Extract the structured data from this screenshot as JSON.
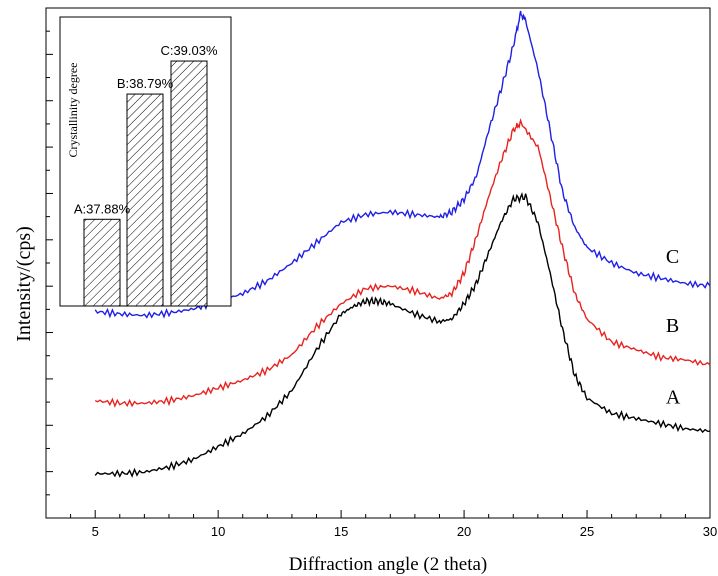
{
  "chart_data": [
    {
      "type": "line",
      "title": "",
      "xlabel": "Diffraction angle (2 theta)",
      "ylabel": "Intensity/(cps)",
      "xlim": [
        3,
        30
      ],
      "ylim": [
        0,
        1
      ],
      "grid": false,
      "legend": "none",
      "x_ticks": [
        5,
        10,
        15,
        20,
        25,
        30
      ],
      "x_tick_labels": [
        "5",
        "10",
        "15",
        "20",
        "25",
        "30"
      ],
      "series": [
        {
          "name": "A",
          "color": "#000000",
          "points": [
            [
              5,
              0.087
            ],
            [
              6,
              0.087
            ],
            [
              7,
              0.09
            ],
            [
              8,
              0.1
            ],
            [
              9,
              0.115
            ],
            [
              10,
              0.14
            ],
            [
              11,
              0.165
            ],
            [
              12,
              0.2
            ],
            [
              13,
              0.25
            ],
            [
              14,
              0.33
            ],
            [
              15,
              0.4
            ],
            [
              15.5,
              0.415
            ],
            [
              16,
              0.425
            ],
            [
              16.5,
              0.425
            ],
            [
              17,
              0.42
            ],
            [
              18,
              0.4
            ],
            [
              19,
              0.385
            ],
            [
              19.5,
              0.39
            ],
            [
              20,
              0.42
            ],
            [
              20.5,
              0.46
            ],
            [
              21,
              0.52
            ],
            [
              21.5,
              0.58
            ],
            [
              22,
              0.625
            ],
            [
              22.5,
              0.63
            ],
            [
              23,
              0.58
            ],
            [
              23.5,
              0.48
            ],
            [
              24,
              0.37
            ],
            [
              24.5,
              0.28
            ],
            [
              25,
              0.235
            ],
            [
              26,
              0.205
            ],
            [
              27,
              0.195
            ],
            [
              28,
              0.185
            ],
            [
              29,
              0.175
            ],
            [
              30,
              0.17
            ]
          ]
        },
        {
          "name": "B",
          "color": "#e8231f",
          "points": [
            [
              5,
              0.23
            ],
            [
              6,
              0.225
            ],
            [
              7,
              0.225
            ],
            [
              8,
              0.23
            ],
            [
              9,
              0.24
            ],
            [
              10,
              0.255
            ],
            [
              11,
              0.27
            ],
            [
              12,
              0.29
            ],
            [
              13,
              0.32
            ],
            [
              14,
              0.375
            ],
            [
              15,
              0.42
            ],
            [
              16,
              0.45
            ],
            [
              17,
              0.455
            ],
            [
              18,
              0.445
            ],
            [
              19,
              0.43
            ],
            [
              19.5,
              0.44
            ],
            [
              20,
              0.48
            ],
            [
              20.5,
              0.55
            ],
            [
              21,
              0.63
            ],
            [
              21.5,
              0.7
            ],
            [
              22,
              0.76
            ],
            [
              22.3,
              0.775
            ],
            [
              23,
              0.73
            ],
            [
              23.5,
              0.63
            ],
            [
              24,
              0.53
            ],
            [
              24.5,
              0.44
            ],
            [
              25,
              0.39
            ],
            [
              26,
              0.345
            ],
            [
              27,
              0.33
            ],
            [
              28,
              0.315
            ],
            [
              29,
              0.31
            ],
            [
              30,
              0.3
            ]
          ]
        },
        {
          "name": "C",
          "color": "#1f1fe6",
          "points": [
            [
              5,
              0.405
            ],
            [
              6,
              0.4
            ],
            [
              7,
              0.397
            ],
            [
              8,
              0.402
            ],
            [
              9,
              0.41
            ],
            [
              10,
              0.425
            ],
            [
              11,
              0.44
            ],
            [
              12,
              0.465
            ],
            [
              13,
              0.5
            ],
            [
              14,
              0.54
            ],
            [
              15,
              0.58
            ],
            [
              16,
              0.595
            ],
            [
              17,
              0.6
            ],
            [
              18,
              0.595
            ],
            [
              19,
              0.59
            ],
            [
              19.5,
              0.6
            ],
            [
              20,
              0.625
            ],
            [
              20.5,
              0.67
            ],
            [
              21,
              0.76
            ],
            [
              21.5,
              0.84
            ],
            [
              22,
              0.925
            ],
            [
              22.3,
              0.99
            ],
            [
              22.5,
              0.975
            ],
            [
              23,
              0.88
            ],
            [
              23.5,
              0.76
            ],
            [
              24,
              0.64
            ],
            [
              24.5,
              0.57
            ],
            [
              25,
              0.53
            ],
            [
              26,
              0.5
            ],
            [
              27,
              0.48
            ],
            [
              28,
              0.47
            ],
            [
              29,
              0.46
            ],
            [
              30,
              0.455
            ]
          ]
        }
      ],
      "annotations": [
        {
          "label": "C",
          "x": 28,
          "y": 0.5
        },
        {
          "label": "B",
          "x": 28,
          "y": 0.365
        },
        {
          "label": "A",
          "x": 28,
          "y": 0.225
        }
      ]
    },
    {
      "type": "bar",
      "title": "",
      "ylabel": "Crystallinity degree",
      "categories": [
        "A",
        "B",
        "C"
      ],
      "values": [
        37.88,
        38.79,
        39.03
      ],
      "value_labels": [
        "A:37.88%",
        "B:38.79%",
        "C:39.03%"
      ],
      "ylim": [
        37.25,
        39.35
      ],
      "grid": false,
      "legend": "none",
      "fill": "hatched"
    }
  ]
}
